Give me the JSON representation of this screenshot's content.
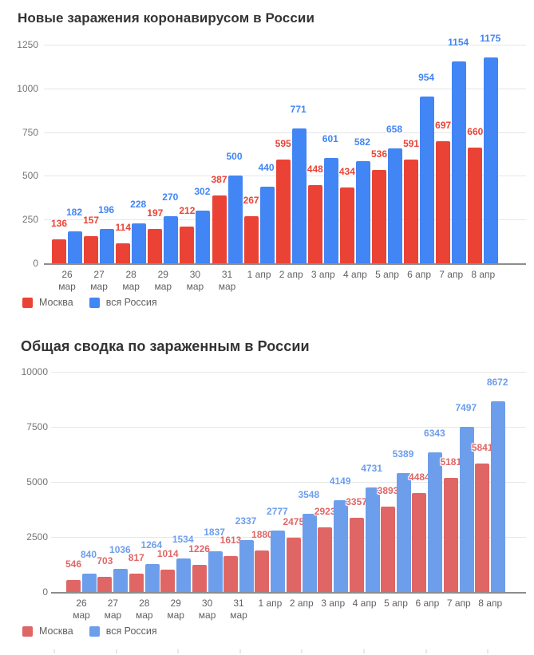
{
  "chart_data": [
    {
      "type": "bar",
      "title": "Новые заражения коронавирусом в России",
      "categories": [
        "26 мар",
        "27 мар",
        "28 мар",
        "29 мар",
        "30 мар",
        "31 мар",
        "1 апр",
        "2 апр",
        "3 апр",
        "4 апр",
        "5 апр",
        "6 апр",
        "7 апр",
        "8 апр"
      ],
      "series": [
        {
          "name": "Москва",
          "color": "#ea4335",
          "values": [
            136,
            157,
            114,
            197,
            212,
            387,
            267,
            595,
            448,
            434,
            536,
            591,
            697,
            660
          ]
        },
        {
          "name": "вся Россия",
          "color": "#4285f4",
          "values": [
            182,
            196,
            228,
            270,
            302,
            500,
            440,
            771,
            601,
            582,
            658,
            954,
            1154,
            1175
          ]
        }
      ],
      "ylim": [
        0,
        1250
      ],
      "yticks": [
        0,
        250,
        500,
        750,
        1000,
        1250
      ],
      "grid": true,
      "data_labels": true,
      "legend_position": "bottom"
    },
    {
      "type": "bar",
      "title": "Общая сводка по зараженным в России",
      "categories": [
        "26 мар",
        "27 мар",
        "28 мар",
        "29 мар",
        "30 мар",
        "31 мар",
        "1 апр",
        "2 апр",
        "3 апр",
        "4 апр",
        "5 апр",
        "6 апр",
        "7 апр",
        "8 апр"
      ],
      "series": [
        {
          "name": "Москва",
          "color": "#e06666",
          "values": [
            546,
            703,
            817,
            1014,
            1226,
            1613,
            1880,
            2475,
            2923,
            3357,
            3893,
            4484,
            5181,
            5841
          ]
        },
        {
          "name": "вся Россия",
          "color": "#6d9eeb",
          "values": [
            840,
            1036,
            1264,
            1534,
            1837,
            2337,
            2777,
            3548,
            4149,
            4731,
            5389,
            6343,
            7497,
            8672
          ]
        }
      ],
      "ylim": [
        0,
        10000
      ],
      "yticks": [
        0,
        2500,
        5000,
        7500,
        10000
      ],
      "grid": true,
      "data_labels": true,
      "legend_position": "bottom"
    }
  ],
  "colors": {
    "background": "#ffffff",
    "gridline": "#e6e6e6",
    "baseline": "#8d8d8d",
    "y_axis_text": "#757575",
    "x_axis_text": "#616161",
    "title_text": "#333333"
  }
}
